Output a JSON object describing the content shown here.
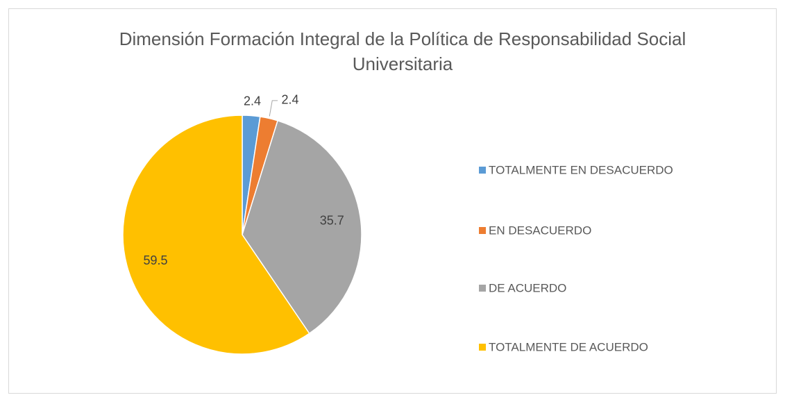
{
  "chart_data": {
    "type": "pie",
    "title": "Dimensión Formación Integral de la Política de Responsabilidad Social Universitaria",
    "categories": [
      "TOTALMENTE EN DESACUERDO",
      "EN DESACUERDO",
      "DE ACUERDO",
      "TOTALMENTE DE ACUERDO"
    ],
    "values": [
      2.4,
      2.4,
      35.7,
      59.5
    ],
    "colors": [
      "#5b9bd5",
      "#ed7d31",
      "#a5a5a5",
      "#ffc000"
    ],
    "legend": "right"
  }
}
